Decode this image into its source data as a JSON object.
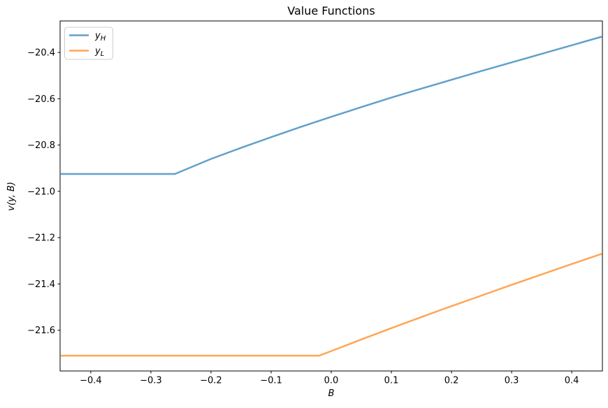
{
  "window": {
    "background": "#ffffff"
  },
  "chart_data": {
    "type": "line",
    "title": "Value Functions",
    "xlabel": "B",
    "ylabel": "v(y, B)",
    "xlim": [
      -0.451,
      0.451
    ],
    "ylim": [
      -21.776,
      -20.264
    ],
    "x_ticks": [
      -0.4,
      -0.3,
      -0.2,
      -0.1,
      0.0,
      0.1,
      0.2,
      0.3,
      0.4
    ],
    "y_ticks": [
      -20.4,
      -20.6,
      -20.8,
      -21.0,
      -21.2,
      -21.4,
      -21.6
    ],
    "grid": false,
    "legend_position": "upper-left",
    "axis_color": "#000000",
    "line_width": 2.5,
    "series": [
      {
        "name": "y_H",
        "label": {
          "base": "y",
          "sub": "H"
        },
        "color": "#62a0ca",
        "x": [
          -0.45,
          -0.26,
          -0.2,
          -0.15,
          -0.1,
          -0.05,
          0.0,
          0.05,
          0.1,
          0.15,
          0.2,
          0.25,
          0.3,
          0.35,
          0.4,
          0.45
        ],
        "y": [
          -20.925,
          -20.925,
          -20.86,
          -20.812,
          -20.766,
          -20.721,
          -20.678,
          -20.636,
          -20.595,
          -20.556,
          -20.518,
          -20.48,
          -20.443,
          -20.406,
          -20.369,
          -20.332
        ]
      },
      {
        "name": "y_L",
        "label": {
          "base": "y",
          "sub": "L"
        },
        "color": "#ffa656",
        "x": [
          -0.45,
          -0.02,
          0.0,
          0.05,
          0.1,
          0.15,
          0.2,
          0.25,
          0.3,
          0.35,
          0.4,
          0.45
        ],
        "y": [
          -21.71,
          -21.71,
          -21.69,
          -21.64,
          -21.591,
          -21.543,
          -21.496,
          -21.45,
          -21.404,
          -21.359,
          -21.314,
          -21.27
        ]
      }
    ]
  }
}
